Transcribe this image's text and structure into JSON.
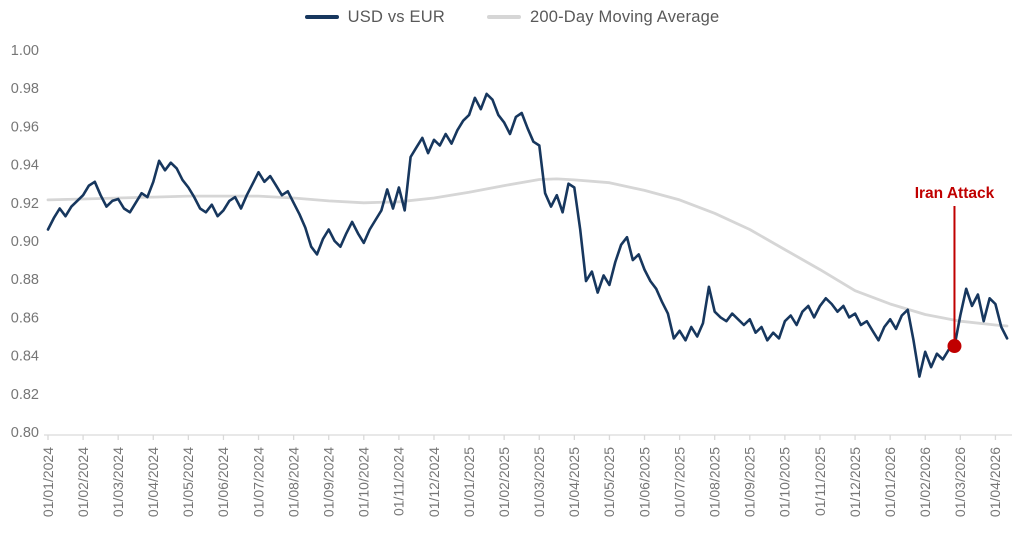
{
  "legend": {
    "items": [
      {
        "label": "USD vs EUR",
        "color": "#17375e"
      },
      {
        "label": "200-Day Moving Average",
        "color": "#d6d6d6"
      }
    ]
  },
  "annotation": {
    "label": "Iran Attack",
    "color": "#c00000",
    "x_month": 25.833,
    "value": 0.845
  },
  "chart_data": {
    "type": "line",
    "title": "",
    "xlabel": "",
    "ylabel": "",
    "grid": false,
    "legend_position": "top",
    "ylim": [
      0.8,
      1.0
    ],
    "y_tick_labels": [
      "1.00",
      "0.98",
      "0.96",
      "0.94",
      "0.92",
      "0.90",
      "0.88",
      "0.86",
      "0.84",
      "0.82",
      "0.80"
    ],
    "y_tick_values": [
      1.0,
      0.98,
      0.96,
      0.94,
      0.92,
      0.9,
      0.88,
      0.86,
      0.84,
      0.82,
      0.8
    ],
    "x_tick_labels": [
      "01/01/2024",
      "01/02/2024",
      "01/03/2024",
      "01/04/2024",
      "01/05/2024",
      "01/06/2024",
      "01/07/2024",
      "01/08/2024",
      "01/09/2024",
      "01/10/2024",
      "01/11/2024",
      "01/12/2024",
      "01/01/2025",
      "01/02/2025",
      "01/03/2025",
      "01/04/2025",
      "01/05/2025",
      "01/06/2025",
      "01/07/2025",
      "01/08/2025",
      "01/09/2025",
      "01/10/2025",
      "01/11/2025",
      "01/12/2025",
      "01/01/2026",
      "01/02/2026",
      "01/03/2026",
      "01/04/2026"
    ],
    "series": [
      {
        "name": "USD vs EUR",
        "color": "#17375e",
        "stroke_width": 2.6,
        "points_per_month": 6,
        "values": [
          0.906,
          0.912,
          0.917,
          0.913,
          0.918,
          0.921,
          0.924,
          0.929,
          0.931,
          0.924,
          0.918,
          0.921,
          0.922,
          0.917,
          0.915,
          0.92,
          0.925,
          0.923,
          0.931,
          0.942,
          0.937,
          0.941,
          0.938,
          0.932,
          0.928,
          0.923,
          0.917,
          0.915,
          0.919,
          0.913,
          0.916,
          0.921,
          0.923,
          0.917,
          0.924,
          0.93,
          0.936,
          0.931,
          0.934,
          0.929,
          0.924,
          0.926,
          0.92,
          0.914,
          0.907,
          0.897,
          0.893,
          0.901,
          0.906,
          0.9,
          0.897,
          0.904,
          0.91,
          0.904,
          0.899,
          0.906,
          0.911,
          0.916,
          0.927,
          0.917,
          0.928,
          0.916,
          0.944,
          0.949,
          0.954,
          0.946,
          0.953,
          0.95,
          0.956,
          0.951,
          0.958,
          0.963,
          0.966,
          0.975,
          0.969,
          0.977,
          0.974,
          0.966,
          0.962,
          0.956,
          0.965,
          0.967,
          0.959,
          0.952,
          0.95,
          0.925,
          0.918,
          0.924,
          0.915,
          0.93,
          0.928,
          0.906,
          0.879,
          0.884,
          0.873,
          0.882,
          0.877,
          0.889,
          0.898,
          0.902,
          0.89,
          0.893,
          0.885,
          0.879,
          0.875,
          0.868,
          0.862,
          0.849,
          0.853,
          0.848,
          0.855,
          0.85,
          0.857,
          0.876,
          0.863,
          0.86,
          0.858,
          0.862,
          0.859,
          0.856,
          0.859,
          0.852,
          0.855,
          0.848,
          0.852,
          0.849,
          0.858,
          0.861,
          0.856,
          0.863,
          0.866,
          0.86,
          0.866,
          0.87,
          0.867,
          0.863,
          0.866,
          0.86,
          0.862,
          0.856,
          0.858,
          0.853,
          0.848,
          0.855,
          0.859,
          0.854,
          0.861,
          0.864,
          0.848,
          0.829,
          0.842,
          0.834,
          0.841,
          0.838,
          0.843,
          0.845,
          0.861,
          0.875,
          0.866,
          0.872,
          0.858,
          0.87,
          0.867,
          0.855,
          0.849
        ]
      },
      {
        "name": "200-Day Moving Average",
        "color": "#d6d6d6",
        "stroke_width": 2.8,
        "x_months": [
          0,
          1,
          2,
          3,
          4,
          5,
          6,
          7,
          8,
          9,
          10,
          11,
          12,
          13,
          14,
          14.5,
          15,
          16,
          17,
          18,
          19,
          20,
          21,
          22,
          23,
          24,
          25,
          26,
          27,
          27.33
        ],
        "values": [
          0.9215,
          0.922,
          0.9225,
          0.923,
          0.9235,
          0.9235,
          0.9235,
          0.9225,
          0.921,
          0.92,
          0.9205,
          0.9225,
          0.9255,
          0.929,
          0.9322,
          0.9325,
          0.932,
          0.9305,
          0.9265,
          0.9215,
          0.9145,
          0.906,
          0.8955,
          0.885,
          0.874,
          0.867,
          0.8615,
          0.858,
          0.856,
          0.8555
        ]
      }
    ],
    "styles": {
      "axis_color": "#d9d9d9",
      "tick_label_color": "#767676",
      "legend_text_color": "#595959",
      "background": "#ffffff"
    }
  }
}
